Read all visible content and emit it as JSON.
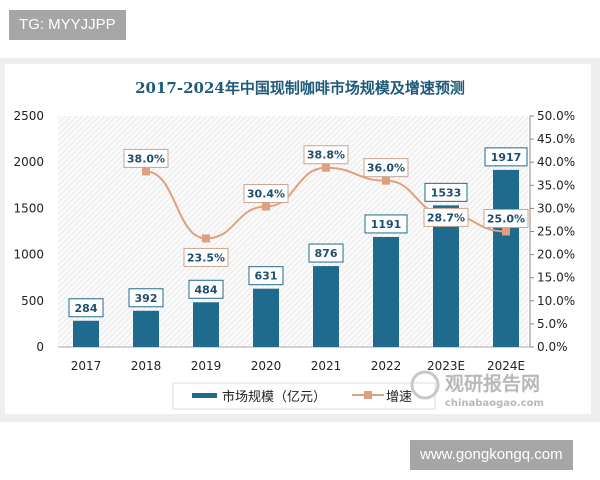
{
  "watermark_top": "TG: MYYJJPP",
  "watermark_bottom": "www.gongkongq.com",
  "source_logo": {
    "name": "观研报告网",
    "url_text": "chinabaogao.com"
  },
  "colors": {
    "bar": "#1f6b8e",
    "line": "#e0a07e",
    "marker": "#e0a07e",
    "title": "#1f5a7a"
  },
  "chart_data": {
    "type": "bar+line",
    "title": "2017-2024年中国现制咖啡市场规模及增速预测",
    "categories": [
      "2017",
      "2018",
      "2019",
      "2020",
      "2021",
      "2022",
      "2023E",
      "2024E"
    ],
    "series": [
      {
        "name": "市场规模（亿元）",
        "type": "bar",
        "axis": "left",
        "values": [
          284,
          392,
          484,
          631,
          876,
          1191,
          1533,
          1917
        ],
        "labels": [
          "284",
          "392",
          "484",
          "631",
          "876",
          "1191",
          "1533",
          "1917"
        ]
      },
      {
        "name": "增速",
        "type": "line",
        "axis": "right",
        "values": [
          null,
          38.0,
          23.5,
          30.4,
          38.8,
          36.0,
          28.7,
          25.0
        ],
        "labels": [
          "",
          "38.0%",
          "23.5%",
          "30.4%",
          "38.8%",
          "36.0%",
          "28.7%",
          "25.0%"
        ]
      }
    ],
    "left_axis": {
      "range": [
        0,
        2500
      ],
      "ticks": [
        "0",
        "500",
        "1000",
        "1500",
        "2000",
        "2500"
      ]
    },
    "right_axis": {
      "range": [
        0,
        50
      ],
      "ticks": [
        "0.0%",
        "5.0%",
        "10.0%",
        "15.0%",
        "20.0%",
        "25.0%",
        "30.0%",
        "35.0%",
        "40.0%",
        "45.0%",
        "50.0%"
      ]
    },
    "grid": false,
    "legend_position": "bottom-left"
  }
}
